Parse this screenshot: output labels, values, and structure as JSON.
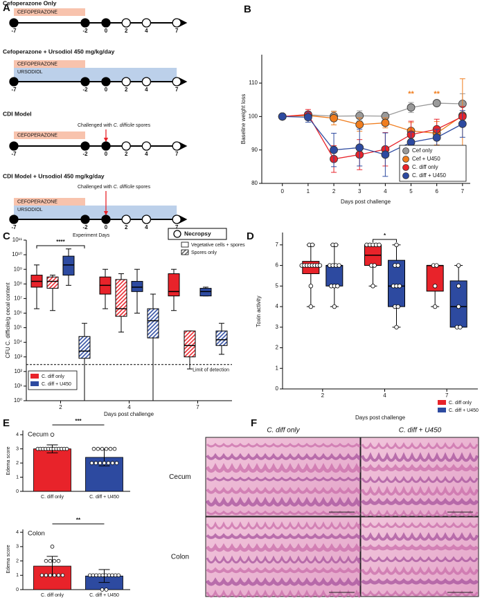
{
  "timelines": {
    "panel": "A",
    "x_label": "Experiment Days",
    "legend": "Necropsy",
    "items": [
      {
        "title": "Cefoperazone Only",
        "bars": [
          {
            "label": "CEFOPERAZONE",
            "start": -7,
            "end": -2,
            "color": "#f8c3ad"
          }
        ],
        "days": [
          -7,
          -2,
          0,
          2,
          4,
          7
        ],
        "necropsy": [
          false,
          false,
          false,
          true,
          true,
          true
        ]
      },
      {
        "title": "Cefoperazone + Ursodiol 450 mg/kg/day",
        "bars": [
          {
            "label": "CEFOPERAZONE",
            "start": -7,
            "end": -2,
            "color": "#f8c3ad"
          },
          {
            "label": "URSODIOL",
            "start": -7,
            "end": 7,
            "color": "#bcd0ea"
          }
        ],
        "days": [
          -7,
          -2,
          0,
          2,
          4,
          7
        ],
        "necropsy": [
          false,
          false,
          false,
          true,
          true,
          true
        ]
      },
      {
        "title": "CDI Model",
        "annotation": [
          "Challenged with ",
          "C. difficile",
          " spores"
        ],
        "challenge_day": 0,
        "bars": [
          {
            "label": "CEFOPERAZONE",
            "start": -7,
            "end": -2,
            "color": "#f8c3ad"
          }
        ],
        "days": [
          -7,
          -2,
          0,
          2,
          4,
          7
        ],
        "necropsy": [
          false,
          false,
          false,
          true,
          true,
          true
        ]
      },
      {
        "title": "CDI Model + Ursodiol 450 mg/kg/day",
        "annotation": [
          "Challenged with ",
          "C. difficile",
          " spores"
        ],
        "challenge_day": 0,
        "bars": [
          {
            "label": "CEFOPERAZONE",
            "start": -7,
            "end": -2,
            "color": "#f8c3ad"
          },
          {
            "label": "URSODIOL",
            "start": -7,
            "end": 7,
            "color": "#bcd0ea"
          }
        ],
        "days": [
          -7,
          -2,
          0,
          2,
          4,
          7
        ],
        "necropsy": [
          false,
          false,
          false,
          true,
          true,
          true
        ]
      }
    ]
  },
  "chart_data": [
    {
      "type": "line",
      "panel": "B",
      "y_label": "Baseline weight loss",
      "x_label": "Days post challenge",
      "x": [
        0,
        1,
        2,
        3,
        4,
        5,
        6,
        7
      ],
      "xlim": [
        -0.8,
        7.3
      ],
      "xticks": [
        0,
        1,
        2,
        3,
        4,
        5,
        6,
        7
      ],
      "ylim": [
        80,
        118.5
      ],
      "yticks": [
        80,
        90,
        100,
        110
      ],
      "legend": "lower right",
      "series": [
        {
          "name": "Cef only",
          "color": "#9a9a9a",
          "values": [
            100,
            100.5,
            100.1,
            100.2,
            100.1,
            102.7,
            104,
            103.8
          ],
          "errors": [
            0,
            1,
            1.5,
            1.5,
            1.2,
            1.5,
            0.8,
            3
          ]
        },
        {
          "name": "Cef + U450",
          "color": "#f07d1e",
          "values": [
            100,
            100.3,
            99.5,
            97.6,
            98.1,
            95.7,
            95,
            100.3
          ],
          "errors": [
            0,
            1.2,
            2,
            2,
            1.5,
            2.5,
            3.5,
            11
          ]
        },
        {
          "name": "C. diff only",
          "color": "#e8232a",
          "values": [
            100,
            100.6,
            87.3,
            88.6,
            90.2,
            94.6,
            96.2,
            100
          ],
          "errors": [
            0,
            1.5,
            4,
            4.5,
            5,
            4,
            3,
            3
          ]
        },
        {
          "name": "C. diff + U450",
          "color": "#2d4aa0",
          "values": [
            100,
            99.8,
            90,
            90.7,
            88.6,
            92.3,
            93.7,
            97.8
          ],
          "errors": [
            0,
            1.5,
            5,
            5.5,
            6.5,
            3,
            2.5,
            4
          ]
        }
      ],
      "annotations": [
        {
          "text": "**",
          "x": 5
        },
        {
          "text": "**",
          "x": 6
        }
      ],
      "annotation_color": "#f07d1e"
    },
    {
      "type": "box",
      "panel": "C",
      "y_label": "CFU C. difficile/g cecal content",
      "x_label": "Days post challenge",
      "categories": [
        "2",
        "4",
        "7"
      ],
      "log_y": true,
      "ylim": [
        1,
        100000000000
      ],
      "yticks": [
        {
          "value": 1,
          "label": "10⁰"
        },
        {
          "value": 10,
          "label": "10¹"
        },
        {
          "value": 100,
          "label": "10²"
        },
        {
          "value": 1000,
          "label": "10³"
        },
        {
          "value": 10000,
          "label": "10⁴"
        },
        {
          "value": 100000,
          "label": "10⁵"
        },
        {
          "value": 1000000,
          "label": "10⁶"
        },
        {
          "value": 10000000,
          "label": "10⁷"
        },
        {
          "value": 100000000,
          "label": "10⁸"
        },
        {
          "value": 1000000000,
          "label": "10⁹"
        },
        {
          "value": 10000000000,
          "label": "10¹⁰"
        },
        {
          "value": 100000000000,
          "label": "10¹¹"
        }
      ],
      "lod": {
        "value": 300,
        "label": "Limit of detection"
      },
      "significance": [
        {
          "text": "****",
          "category": 0
        }
      ],
      "color_legend": [
        {
          "name": "C. diff only",
          "color": "#e8232a"
        },
        {
          "name": "C. diff + U450",
          "color": "#2d4aa0"
        }
      ],
      "pattern_legend": [
        {
          "name": "Vegetative cells + spores",
          "hatched": false
        },
        {
          "name": "Spores only",
          "hatched": true
        }
      ],
      "groups": [
        {
          "color": "#e8232a",
          "hatched": false,
          "boxes": [
            {
              "min": 2000000,
              "q1": 60000000,
              "median": 150000000,
              "q3": 400000000,
              "max": 2000000000
            },
            {
              "min": 2000000,
              "q1": 20000000,
              "median": 80000000,
              "q3": 300000000,
              "max": 1000000000
            },
            {
              "min": 1500000,
              "q1": 15000000,
              "median": 30000000,
              "q3": 500000000,
              "max": 1000000000
            }
          ]
        },
        {
          "color": "#e8232a",
          "hatched": true,
          "boxes": [
            {
              "min": 1500000,
              "q1": 50000000,
              "median": 150000000,
              "q3": 300000000,
              "max": 400000000
            },
            {
              "min": 50000,
              "q1": 600000,
              "median": 2000000,
              "q3": 200000000,
              "max": 500000000
            },
            {
              "min": 150,
              "q1": 1000,
              "median": 6000,
              "q3": 60000,
              "max": 60000
            }
          ]
        },
        {
          "color": "#2d4aa0",
          "hatched": false,
          "boxes": [
            {
              "min": 80000000,
              "q1": 400000000,
              "median": 2000000000,
              "q3": 8000000000,
              "max": 25000000000
            },
            {
              "min": 1000000,
              "q1": 30000000,
              "median": 60000000,
              "q3": 150000000,
              "max": 1000000000
            },
            {
              "min": 15000000,
              "q1": 15000000,
              "median": 30000000,
              "q3": 50000000,
              "max": 60000000
            }
          ]
        },
        {
          "color": "#2d4aa0",
          "hatched": true,
          "boxes": [
            {
              "min": 1,
              "q1": 800,
              "median": 2500,
              "q3": 25000,
              "max": 200000
            },
            {
              "min": 1,
              "q1": 20000,
              "median": 300000,
              "q3": 2000000,
              "max": 20000000
            },
            {
              "min": 1500,
              "q1": 6000,
              "median": 15000,
              "q3": 60000,
              "max": 200000
            }
          ]
        }
      ]
    },
    {
      "type": "box",
      "panel": "D",
      "y_label": "Toxin activity",
      "x_label": "Days post challenge",
      "categories": [
        "2",
        "4",
        "7"
      ],
      "ylim": [
        0,
        7.6
      ],
      "yticks": [
        0,
        1,
        2,
        3,
        4,
        5,
        6,
        7
      ],
      "significance": [
        {
          "text": "*",
          "category": 1
        }
      ],
      "color_legend": [
        {
          "name": "C. diff only",
          "color": "#e8232a"
        },
        {
          "name": "C. diff + U450",
          "color": "#2d4aa0"
        }
      ],
      "groups": [
        {
          "color": "#e8232a",
          "hatched": false,
          "boxes": [
            {
              "min": 4,
              "q1": 5.6,
              "median": 6,
              "q3": 6.2,
              "max": 7
            },
            {
              "min": 5,
              "q1": 6,
              "median": 6.5,
              "q3": 7,
              "max": 7
            },
            {
              "min": 4,
              "q1": 4.75,
              "median": 6,
              "q3": 6,
              "max": 6
            }
          ],
          "points": [
            [
              7,
              7,
              6,
              6,
              6,
              6,
              6,
              6,
              6,
              6,
              5,
              4
            ],
            [
              7,
              7,
              7,
              7,
              7,
              6,
              6,
              5
            ],
            [
              6,
              6,
              5,
              4
            ]
          ]
        },
        {
          "color": "#2d4aa0",
          "hatched": false,
          "boxes": [
            {
              "min": 4,
              "q1": 5,
              "median": 6,
              "q3": 6,
              "max": 7
            },
            {
              "min": 3,
              "q1": 4,
              "median": 5,
              "q3": 6.25,
              "max": 7
            },
            {
              "min": 3,
              "q1": 3,
              "median": 4,
              "q3": 5.25,
              "max": 6
            }
          ],
          "points": [
            [
              7,
              7,
              6,
              6,
              6,
              6,
              5,
              5,
              5,
              4
            ],
            [
              7,
              6,
              6,
              5,
              5,
              5,
              4,
              4,
              3
            ],
            [
              6,
              5,
              4,
              3,
              3
            ]
          ]
        }
      ]
    },
    {
      "type": "bar",
      "panel": "E",
      "title": "Cecum",
      "y_label": "Edema score",
      "categories": [
        "C. diff only",
        "C. diff + U450"
      ],
      "colors": [
        "#e8232a",
        "#2d4aa0"
      ],
      "values": [
        3,
        2.4
      ],
      "errors": [
        0.28,
        0.6
      ],
      "ylim": [
        0,
        4.3
      ],
      "yticks": [
        0,
        1,
        2,
        3,
        4
      ],
      "points": [
        [
          4,
          3,
          3,
          3,
          3,
          3,
          3,
          3,
          3,
          3,
          3,
          3,
          3
        ],
        [
          3,
          3,
          3,
          3,
          3,
          3,
          2,
          2,
          2,
          2,
          2,
          2,
          2
        ]
      ],
      "significance": [
        {
          "text": "***"
        }
      ]
    },
    {
      "type": "bar",
      "title": "Colon",
      "y_label": "Edema score",
      "categories": [
        "C. diff only",
        "C. diff + U450"
      ],
      "colors": [
        "#e8232a",
        "#2d4aa0"
      ],
      "values": [
        1.64,
        0.95
      ],
      "errors": [
        0.68,
        0.45
      ],
      "ylim": [
        0,
        4.2
      ],
      "yticks": [
        0,
        1,
        2,
        3,
        4
      ],
      "points": [
        [
          3,
          2,
          2,
          2,
          2,
          1,
          1,
          1,
          1,
          1,
          1
        ],
        [
          1,
          1,
          1,
          1,
          1,
          1,
          1,
          1,
          1,
          1,
          0,
          0
        ]
      ],
      "significance": [
        {
          "text": "**"
        }
      ]
    }
  ],
  "histology": {
    "panel": "F",
    "columns": [
      "C. diff only",
      "C. diff + U450"
    ],
    "rows": [
      "Cecum",
      "Colon"
    ]
  }
}
